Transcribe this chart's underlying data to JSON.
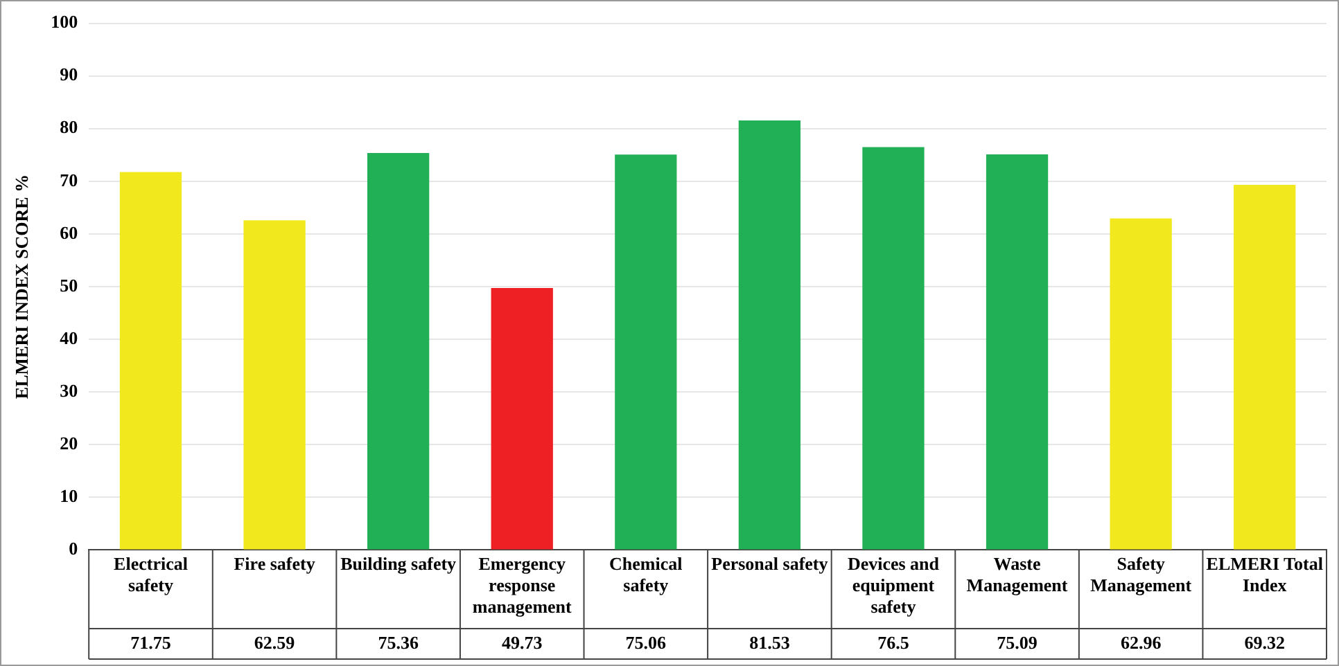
{
  "chart_data": {
    "type": "bar",
    "ylabel": "ELMERI INDEX SCORE %",
    "categories": [
      "Electrical safety",
      "Fire safety",
      "Building safety",
      "Emergency response management",
      "Chemical safety",
      "Personal safety",
      "Devices and equipment safety",
      "Waste Management",
      "Safety Management",
      "ELMERI Total Index"
    ],
    "values": [
      71.75,
      62.59,
      75.36,
      49.73,
      75.06,
      81.53,
      76.5,
      75.09,
      62.96,
      69.32
    ],
    "colors": [
      "#f2e81e",
      "#f2e81e",
      "#22b057",
      "#ee2024",
      "#22b057",
      "#22b057",
      "#22b057",
      "#22b057",
      "#f2e81e",
      "#f2e81e"
    ],
    "ylim": [
      0,
      100
    ],
    "yticks": [
      0,
      10,
      20,
      30,
      40,
      50,
      60,
      70,
      80,
      90,
      100
    ],
    "grid": "y",
    "legend": false,
    "data_labels": true
  }
}
